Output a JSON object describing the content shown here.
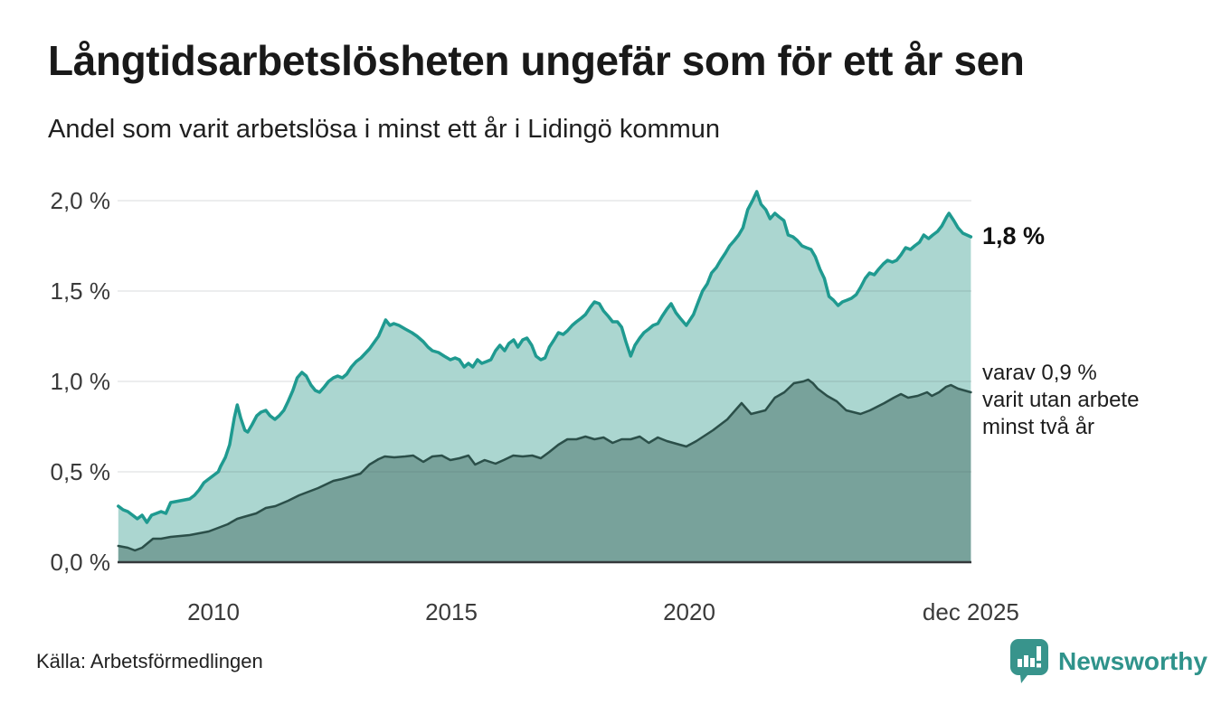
{
  "header": {
    "title": "Långtidsarbetslösheten ungefär som för ett år sen",
    "subtitle": "Andel som varit arbetslösa i minst ett år i Lidingö kommun"
  },
  "footer": {
    "source": "Källa: Arbetsförmedlingen",
    "brand": "Newsworthy"
  },
  "colors": {
    "accent_teal": "#1f9a90",
    "light_fill": "#abd6d0",
    "dark_teal_line": "#2b4f49",
    "dark_fill": "#78a29b",
    "gridline": "rgba(70,85,95,0.14)",
    "zero_axis": "#34383b",
    "tick_text": "#3a3a3a",
    "brand_teal": "#2f938b"
  },
  "chart_data": {
    "type": "area",
    "title": "Långtidsarbetslösheten ungefär som för ett år sen",
    "subtitle": "Andel som varit arbetslösa i minst ett år i Lidingö kommun",
    "xlabel": "",
    "ylabel": "",
    "xlim": [
      2008.0,
      2025.92
    ],
    "ylim": [
      0,
      2.1
    ],
    "grid": "horizontal",
    "legend_position": "none",
    "x_ticks": [
      {
        "value": 2010,
        "label": "2010"
      },
      {
        "value": 2015,
        "label": "2015"
      },
      {
        "value": 2020,
        "label": "2020"
      },
      {
        "value": 2025.92,
        "label": "dec 2025"
      }
    ],
    "y_ticks": [
      {
        "value": 0.0,
        "label": "0,0 %"
      },
      {
        "value": 0.5,
        "label": "0,5 %"
      },
      {
        "value": 1.0,
        "label": "1,0 %"
      },
      {
        "value": 1.5,
        "label": "1,5 %"
      },
      {
        "value": 2.0,
        "label": "2,0 %"
      }
    ],
    "annotations": {
      "end_value_label": "1,8 %",
      "secondary_label_lines": [
        "varav 0,9 %",
        "varit utan arbete",
        "minst två år"
      ]
    },
    "series": [
      {
        "id": "min-one-year",
        "name": "Arbetslösa minst ett år",
        "color": "#1f9a90",
        "fill": "#abd6d0",
        "stroke_width": 3.5,
        "last_value": 1.8,
        "x": [
          2008.0,
          2008.1,
          2008.2,
          2008.3,
          2008.4,
          2008.5,
          2008.6,
          2008.7,
          2008.8,
          2008.9,
          2009.0,
          2009.1,
          2009.3,
          2009.5,
          2009.6,
          2009.7,
          2009.8,
          2009.9,
          2010.0,
          2010.1,
          2010.15,
          2010.25,
          2010.34,
          2010.44,
          2010.5,
          2010.57,
          2010.66,
          2010.72,
          2010.81,
          2010.91,
          2011.0,
          2011.1,
          2011.19,
          2011.29,
          2011.38,
          2011.48,
          2011.57,
          2011.67,
          2011.76,
          2011.86,
          2011.95,
          2012.05,
          2012.14,
          2012.23,
          2012.33,
          2012.42,
          2012.52,
          2012.61,
          2012.71,
          2012.8,
          2012.9,
          2013.0,
          2013.1,
          2013.28,
          2013.47,
          2013.62,
          2013.71,
          2013.79,
          2013.9,
          2014.03,
          2014.17,
          2014.28,
          2014.41,
          2014.51,
          2014.6,
          2014.73,
          2014.85,
          2014.98,
          2015.08,
          2015.17,
          2015.27,
          2015.36,
          2015.45,
          2015.55,
          2015.64,
          2015.74,
          2015.83,
          2015.93,
          2016.02,
          2016.12,
          2016.21,
          2016.31,
          2016.4,
          2016.5,
          2016.59,
          2016.69,
          2016.78,
          2016.88,
          2016.97,
          2017.06,
          2017.16,
          2017.25,
          2017.35,
          2017.44,
          2017.54,
          2017.63,
          2017.73,
          2017.82,
          2017.92,
          2018.01,
          2018.11,
          2018.2,
          2018.3,
          2018.39,
          2018.49,
          2018.58,
          2018.67,
          2018.77,
          2018.86,
          2018.96,
          2019.05,
          2019.15,
          2019.24,
          2019.34,
          2019.43,
          2019.53,
          2019.62,
          2019.72,
          2019.81,
          2019.94,
          2020.09,
          2020.19,
          2020.28,
          2020.38,
          2020.47,
          2020.57,
          2020.66,
          2020.76,
          2020.85,
          2020.95,
          2021.04,
          2021.13,
          2021.23,
          2021.33,
          2021.42,
          2021.51,
          2021.61,
          2021.7,
          2021.8,
          2021.89,
          2021.99,
          2022.08,
          2022.18,
          2022.27,
          2022.37,
          2022.46,
          2022.56,
          2022.65,
          2022.75,
          2022.84,
          2022.94,
          2023.03,
          2023.13,
          2023.22,
          2023.32,
          2023.41,
          2023.51,
          2023.6,
          2023.7,
          2023.79,
          2023.89,
          2023.98,
          2024.08,
          2024.17,
          2024.27,
          2024.36,
          2024.45,
          2024.55,
          2024.65,
          2024.74,
          2024.84,
          2024.93,
          2025.03,
          2025.12,
          2025.22,
          2025.31,
          2025.41,
          2025.46,
          2025.56,
          2025.65,
          2025.75,
          2025.92
        ],
        "y": [
          0.31,
          0.29,
          0.28,
          0.26,
          0.24,
          0.26,
          0.22,
          0.26,
          0.27,
          0.28,
          0.27,
          0.33,
          0.34,
          0.35,
          0.37,
          0.4,
          0.44,
          0.46,
          0.48,
          0.5,
          0.53,
          0.58,
          0.65,
          0.8,
          0.87,
          0.8,
          0.73,
          0.72,
          0.76,
          0.81,
          0.83,
          0.84,
          0.81,
          0.79,
          0.81,
          0.84,
          0.89,
          0.95,
          1.02,
          1.05,
          1.03,
          0.98,
          0.95,
          0.94,
          0.97,
          1.0,
          1.02,
          1.03,
          1.02,
          1.04,
          1.08,
          1.11,
          1.13,
          1.18,
          1.25,
          1.34,
          1.31,
          1.32,
          1.31,
          1.29,
          1.27,
          1.25,
          1.22,
          1.19,
          1.17,
          1.16,
          1.14,
          1.12,
          1.13,
          1.12,
          1.08,
          1.1,
          1.08,
          1.12,
          1.1,
          1.11,
          1.12,
          1.17,
          1.2,
          1.17,
          1.21,
          1.23,
          1.19,
          1.23,
          1.24,
          1.2,
          1.14,
          1.12,
          1.13,
          1.19,
          1.23,
          1.27,
          1.26,
          1.28,
          1.31,
          1.33,
          1.35,
          1.37,
          1.41,
          1.44,
          1.43,
          1.39,
          1.36,
          1.33,
          1.33,
          1.3,
          1.22,
          1.14,
          1.2,
          1.24,
          1.27,
          1.29,
          1.31,
          1.32,
          1.36,
          1.4,
          1.43,
          1.38,
          1.35,
          1.31,
          1.37,
          1.44,
          1.5,
          1.54,
          1.6,
          1.63,
          1.67,
          1.71,
          1.75,
          1.78,
          1.81,
          1.85,
          1.95,
          2.0,
          2.05,
          1.98,
          1.95,
          1.9,
          1.93,
          1.91,
          1.89,
          1.81,
          1.8,
          1.78,
          1.75,
          1.74,
          1.73,
          1.69,
          1.62,
          1.57,
          1.47,
          1.45,
          1.42,
          1.44,
          1.45,
          1.46,
          1.48,
          1.52,
          1.57,
          1.6,
          1.59,
          1.62,
          1.65,
          1.67,
          1.66,
          1.67,
          1.7,
          1.74,
          1.73,
          1.75,
          1.77,
          1.81,
          1.79,
          1.81,
          1.83,
          1.86,
          1.91,
          1.93,
          1.89,
          1.85,
          1.82,
          1.8
        ]
      },
      {
        "id": "min-two-years",
        "name": "varav arbetslösa minst två år",
        "color": "#2b4f49",
        "fill": "#78a29b",
        "stroke_width": 2.5,
        "last_value": 0.9,
        "x": [
          2008.0,
          2008.2,
          2008.35,
          2008.5,
          2008.73,
          2008.9,
          2009.1,
          2009.3,
          2009.5,
          2009.7,
          2009.9,
          2010.1,
          2010.3,
          2010.5,
          2010.63,
          2010.9,
          2011.1,
          2011.3,
          2011.57,
          2011.8,
          2012.0,
          2012.2,
          2012.52,
          2012.7,
          2012.9,
          2013.09,
          2013.28,
          2013.47,
          2013.6,
          2013.8,
          2014.03,
          2014.2,
          2014.41,
          2014.6,
          2014.8,
          2014.98,
          2015.17,
          2015.36,
          2015.5,
          2015.7,
          2015.93,
          2016.1,
          2016.3,
          2016.5,
          2016.7,
          2016.88,
          2017.06,
          2017.25,
          2017.44,
          2017.63,
          2017.82,
          2018.01,
          2018.2,
          2018.39,
          2018.58,
          2018.77,
          2018.96,
          2019.15,
          2019.34,
          2019.53,
          2019.8,
          2019.94,
          2020.15,
          2020.5,
          2020.8,
          2021.0,
          2021.1,
          2021.3,
          2021.6,
          2021.8,
          2022.0,
          2022.2,
          2022.4,
          2022.5,
          2022.6,
          2022.7,
          2022.9,
          2023.1,
          2023.3,
          2023.6,
          2023.8,
          2023.95,
          2024.1,
          2024.3,
          2024.45,
          2024.6,
          2024.8,
          2025.0,
          2025.1,
          2025.25,
          2025.4,
          2025.5,
          2025.65,
          2025.92
        ],
        "y": [
          0.09,
          0.08,
          0.065,
          0.08,
          0.13,
          0.13,
          0.14,
          0.145,
          0.15,
          0.16,
          0.17,
          0.19,
          0.21,
          0.24,
          0.25,
          0.27,
          0.3,
          0.31,
          0.34,
          0.37,
          0.39,
          0.41,
          0.45,
          0.46,
          0.475,
          0.49,
          0.54,
          0.57,
          0.585,
          0.58,
          0.585,
          0.59,
          0.555,
          0.585,
          0.59,
          0.565,
          0.575,
          0.59,
          0.54,
          0.565,
          0.545,
          0.565,
          0.59,
          0.585,
          0.59,
          0.575,
          0.61,
          0.65,
          0.68,
          0.68,
          0.695,
          0.68,
          0.69,
          0.66,
          0.68,
          0.68,
          0.695,
          0.66,
          0.69,
          0.67,
          0.65,
          0.64,
          0.67,
          0.73,
          0.79,
          0.85,
          0.88,
          0.82,
          0.84,
          0.91,
          0.94,
          0.99,
          1.0,
          1.01,
          0.99,
          0.96,
          0.92,
          0.89,
          0.84,
          0.82,
          0.84,
          0.86,
          0.88,
          0.91,
          0.93,
          0.91,
          0.92,
          0.94,
          0.92,
          0.94,
          0.97,
          0.98,
          0.96,
          0.94
        ]
      }
    ]
  }
}
